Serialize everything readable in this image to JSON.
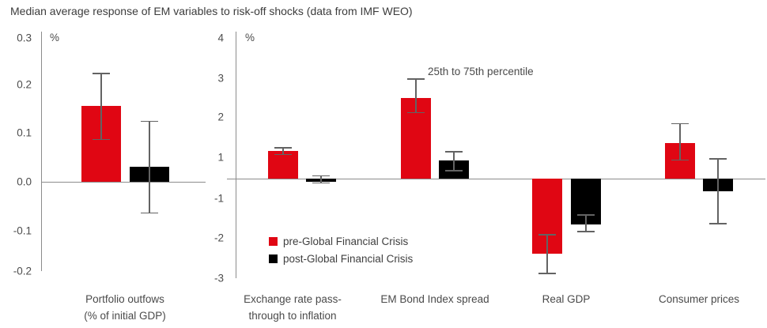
{
  "title": "Median average response of EM variables to risk-off shocks (data from IMF WEO)",
  "annotation": "25th to 75th percentile",
  "legend": {
    "pre_label": "pre-Global Financial Crisis",
    "pre_color": "#e00613",
    "post_label": "post-Global Financial Crisis",
    "post_color": "#000000"
  },
  "chart_data": [
    {
      "type": "bar",
      "panel": "left",
      "ylabel": "%",
      "ylim": [
        -0.2,
        0.3
      ],
      "yticks": [
        0.3,
        0.2,
        0.1,
        0.0,
        -0.1,
        -0.2
      ],
      "ytick_labels": [
        "0.3",
        "0.2",
        "0.1",
        "0.0",
        "-0.1",
        "-0.2"
      ],
      "grid": "off",
      "categories": [
        [
          "Portfolio outfows",
          "(% of initial GDP)"
        ]
      ],
      "series": [
        {
          "name": "pre-Global Financial Crisis",
          "color": "#e00613",
          "values": [
            0.155
          ],
          "lo": [
            0.085
          ],
          "hi": [
            0.225
          ]
        },
        {
          "name": "post-Global Financial Crisis",
          "color": "#000000",
          "values": [
            0.03
          ],
          "lo": [
            -0.065
          ],
          "hi": [
            0.125
          ]
        }
      ],
      "error_bars": "25th to 75th percentile"
    },
    {
      "type": "bar",
      "panel": "right",
      "ylabel": "%",
      "ylim": [
        -3,
        4
      ],
      "yticks": [
        4,
        3,
        2,
        1,
        -1,
        -2,
        -3
      ],
      "ytick_labels": [
        "4",
        "3",
        "2",
        "1",
        "-1",
        "-2",
        "-3"
      ],
      "grid": "off",
      "categories": [
        [
          "Exchange rate pass-",
          "through to inflation"
        ],
        [
          "EM Bond Index spread"
        ],
        [
          "Real GDP"
        ],
        [
          "Consumer prices"
        ]
      ],
      "series": [
        {
          "name": "pre-Global Financial Crisis",
          "color": "#e00613",
          "values": [
            1.15,
            2.5,
            -2.4,
            1.35
          ],
          "lo": [
            1.05,
            2.1,
            -2.9,
            0.85
          ],
          "hi": [
            1.25,
            3.0,
            -1.9,
            1.85
          ]
        },
        {
          "name": "post-Global Financial Crisis",
          "color": "#000000",
          "values": [
            -0.15,
            0.85,
            -1.65,
            -0.65
          ],
          "lo": [
            -0.25,
            0.35,
            -1.85,
            -1.65
          ],
          "hi": [
            0.15,
            1.15,
            -1.4,
            0.95
          ]
        }
      ],
      "error_bars": "25th to 75th percentile"
    }
  ]
}
